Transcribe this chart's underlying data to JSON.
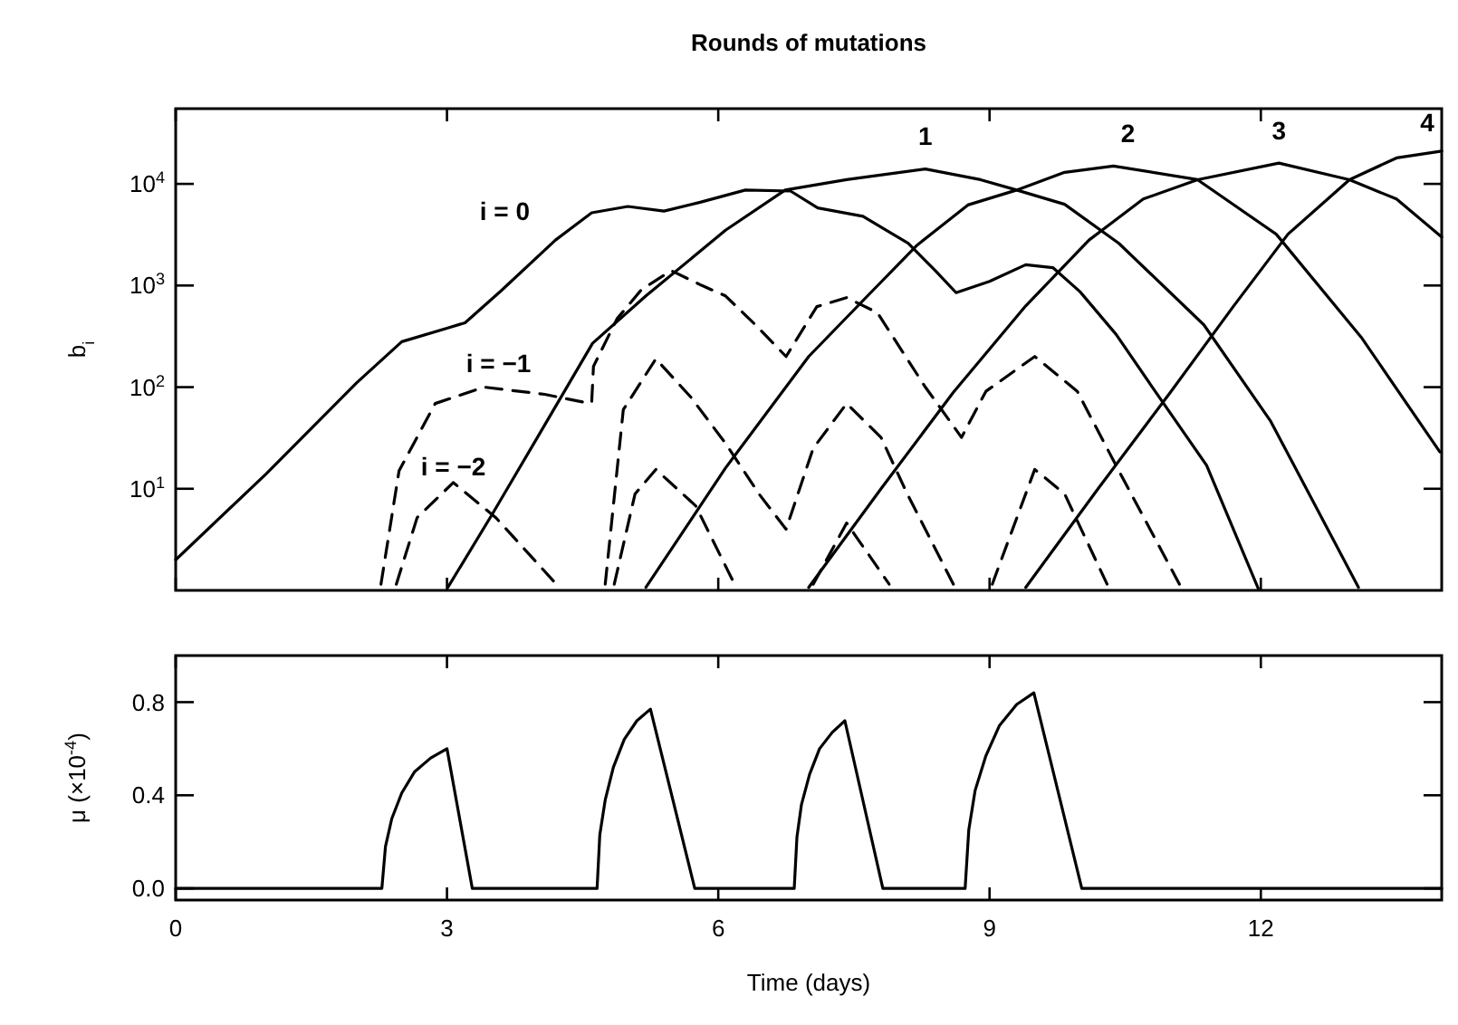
{
  "chart_data": [
    {
      "type": "line",
      "title": "Rounds of mutations",
      "ylabel": "b$_{i}$",
      "log": "y",
      "tick_labels": "y",
      "xlim": [
        0,
        14
      ],
      "xticks": [
        {
          "value": 0,
          "label": null
        },
        {
          "value": 3,
          "label": null
        },
        {
          "value": 6,
          "label": null
        },
        {
          "value": 9,
          "label": null
        },
        {
          "value": 12,
          "label": null
        }
      ],
      "ylim": [
        1,
        55000
      ],
      "yticks": [
        {
          "value": 10,
          "label": "10$^{1}$"
        },
        {
          "value": 100,
          "label": "10$^{2}$"
        },
        {
          "value": 1000,
          "label": "10$^{3}$"
        },
        {
          "value": 10000,
          "label": "10$^{4}$"
        }
      ],
      "series": [
        {
          "name": "i = 0",
          "color": "#000000",
          "line_style": "solid",
          "x": [
            0,
            1,
            2,
            2.5,
            3.0,
            3.2,
            3.6,
            4.2,
            4.6,
            5.0,
            5.4,
            5.8,
            6.3,
            6.8,
            7.1,
            7.6,
            8.1,
            8.4,
            8.63,
            9.0,
            9.4,
            9.7,
            10.0,
            10.4,
            10.8,
            11.4,
            11.97
          ],
          "values": [
            2,
            14,
            110,
            280,
            380,
            430,
            890,
            2800,
            5200,
            6000,
            5400,
            6600,
            8700,
            8500,
            5800,
            4800,
            2600,
            1400,
            850,
            1100,
            1600,
            1500,
            870,
            330,
            100,
            17,
            1.05
          ]
        },
        {
          "name": "1",
          "color": "#000000",
          "line_style": "solid",
          "x": [
            3.01,
            3.5,
            4.0,
            4.61,
            5.2,
            5.75,
            6.08,
            6.74,
            7.42,
            8.29,
            8.9,
            9.3,
            9.83,
            10.43,
            11.37,
            12.11,
            13.08
          ],
          "values": [
            1.07,
            5.6,
            32,
            270,
            790,
            2000,
            3500,
            8700,
            11000,
            14000,
            11000,
            8700,
            6300,
            2600,
            410,
            46,
            1.07
          ]
        },
        {
          "name": "2",
          "color": "#000000",
          "line_style": "solid",
          "x": [
            5.2,
            6.08,
            7.0,
            7.6,
            8.2,
            8.76,
            9.3,
            9.83,
            10.37,
            11.3,
            12.17,
            13.11,
            13.98
          ],
          "values": [
            1.07,
            16,
            200,
            710,
            2500,
            6200,
            8700,
            13000,
            15000,
            11000,
            3200,
            310,
            23
          ]
        },
        {
          "name": "3",
          "color": "#000000",
          "line_style": "solid",
          "x": [
            7.0,
            7.8,
            8.6,
            9.4,
            10.1,
            10.7,
            11.3,
            12.2,
            12.98,
            13.5,
            14
          ],
          "values": [
            1.07,
            10,
            89,
            630,
            2800,
            7100,
            11000,
            16000,
            11000,
            7100,
            3000
          ]
        },
        {
          "name": "4",
          "color": "#000000",
          "line_style": "solid",
          "x": [
            9.4,
            10.2,
            11.0,
            11.7,
            12.3,
            12.98,
            13.5,
            14
          ],
          "values": [
            1.07,
            10,
            89,
            630,
            3200,
            11000,
            18000,
            21000
          ]
        },
        {
          "name": "i = −1",
          "color": "#000000",
          "line_style": "dashed",
          "x": [
            2.27,
            2.47,
            2.87,
            3.41,
            4.08,
            4.55,
            4.6,
            4.62,
            4.88,
            5.15,
            5.48,
            5.82,
            6.08,
            6.4,
            6.75,
            7.09,
            7.42,
            7.76,
            8.29,
            8.69,
            8.96,
            9.5,
            9.97,
            10.43,
            11.1
          ],
          "values": [
            1.15,
            15,
            69,
            100,
            85,
            70,
            70,
            160,
            470,
            910,
            1400,
            1000,
            790,
            420,
            200,
            620,
            760,
            540,
            100,
            32,
            91,
            200,
            91,
            15,
            1.15
          ]
        },
        {
          "name": "i = −2",
          "color": "#000000",
          "line_style": "dashed",
          "x": [
            2.44,
            2.67,
            3.07,
            3.54,
            4.21
          ],
          "values": [
            1.15,
            5.2,
            11.5,
            5.2,
            1.15
          ]
        },
        {
          "color": "#000000",
          "line_style": "dashed",
          "x": [
            4.75,
            4.95,
            5.31,
            5.7,
            6.08,
            6.45,
            6.75,
            7.05,
            7.42,
            7.8,
            8.09,
            8.6
          ],
          "values": [
            1.15,
            60,
            190,
            79,
            28,
            8.9,
            4,
            25,
            69,
            32,
            8.9,
            1.15
          ]
        },
        {
          "color": "#000000",
          "line_style": "dashed",
          "x": [
            4.85,
            5.08,
            5.31,
            5.75,
            6.18
          ],
          "values": [
            1.15,
            8.9,
            15.5,
            6.8,
            1.15
          ]
        },
        {
          "color": "#000000",
          "line_style": "dashed",
          "x": [
            7.05,
            7.42,
            7.89
          ],
          "values": [
            1.15,
            4.6,
            1.15
          ]
        },
        {
          "color": "#000000",
          "line_style": "dashed",
          "x": [
            9.03,
            9.5,
            9.83,
            10.3
          ],
          "values": [
            1.15,
            15.5,
            8.9,
            1.15
          ]
        }
      ]
    },
    {
      "type": "line",
      "xlabel": "Time (days)",
      "ylabel": "μ (×10$^{-4}$)",
      "xlim": [
        0,
        14
      ],
      "xticks": [
        0,
        3,
        6,
        9,
        12
      ],
      "ylim": [
        -0.05,
        1.0
      ],
      "yticks": [
        {
          "value": 0,
          "label": "0.0"
        },
        {
          "value": 0.4,
          "label": "0.4"
        },
        {
          "value": 0.8,
          "label": "0.8"
        }
      ],
      "series": [
        {
          "color": "#000000",
          "line_style": "solid",
          "x": [
            0,
            2.28,
            2.32,
            2.39,
            2.5,
            2.64,
            2.82,
            3.0,
            3.28,
            4.66,
            4.69,
            4.75,
            4.84,
            4.96,
            5.1,
            5.25,
            5.74,
            6.84,
            6.87,
            6.92,
            7.01,
            7.12,
            7.26,
            7.4,
            7.82,
            8.73,
            8.77,
            8.84,
            8.96,
            9.11,
            9.3,
            9.49,
            10.02,
            14
          ],
          "values": [
            0,
            0,
            0.18,
            0.3,
            0.41,
            0.5,
            0.56,
            0.6,
            0,
            0,
            0.23,
            0.38,
            0.52,
            0.64,
            0.72,
            0.77,
            0,
            0,
            0.22,
            0.36,
            0.49,
            0.6,
            0.67,
            0.72,
            0,
            0,
            0.25,
            0.42,
            0.57,
            0.7,
            0.79,
            0.84,
            0,
            0
          ]
        }
      ]
    }
  ]
}
